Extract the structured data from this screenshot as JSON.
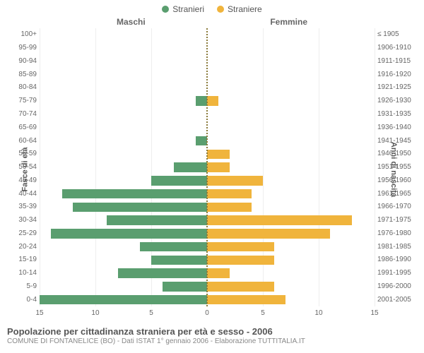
{
  "legend": {
    "male": "Stranieri",
    "female": "Straniere"
  },
  "gender_headers": {
    "male": "Maschi",
    "female": "Femmine"
  },
  "axis_titles": {
    "left": "Fasce di età",
    "right": "Anni di nascita"
  },
  "colors": {
    "male": "#5a9e6f",
    "female": "#f0b43c",
    "grid": "#eeeeee",
    "center_dash": "#8a7a3a",
    "bg": "#ffffff"
  },
  "x_axis": {
    "max": 15,
    "ticks": [
      15,
      10,
      5,
      0,
      5,
      10,
      15
    ]
  },
  "rows": [
    {
      "age": "100+",
      "birth": "≤ 1905",
      "m": 0,
      "f": 0
    },
    {
      "age": "95-99",
      "birth": "1906-1910",
      "m": 0,
      "f": 0
    },
    {
      "age": "90-94",
      "birth": "1911-1915",
      "m": 0,
      "f": 0
    },
    {
      "age": "85-89",
      "birth": "1916-1920",
      "m": 0,
      "f": 0
    },
    {
      "age": "80-84",
      "birth": "1921-1925",
      "m": 0,
      "f": 0
    },
    {
      "age": "75-79",
      "birth": "1926-1930",
      "m": 1,
      "f": 1
    },
    {
      "age": "70-74",
      "birth": "1931-1935",
      "m": 0,
      "f": 0
    },
    {
      "age": "65-69",
      "birth": "1936-1940",
      "m": 0,
      "f": 0
    },
    {
      "age": "60-64",
      "birth": "1941-1945",
      "m": 1,
      "f": 0
    },
    {
      "age": "55-59",
      "birth": "1946-1950",
      "m": 0,
      "f": 2
    },
    {
      "age": "50-54",
      "birth": "1951-1955",
      "m": 3,
      "f": 2
    },
    {
      "age": "45-49",
      "birth": "1956-1960",
      "m": 5,
      "f": 5
    },
    {
      "age": "40-44",
      "birth": "1961-1965",
      "m": 13,
      "f": 4
    },
    {
      "age": "35-39",
      "birth": "1966-1970",
      "m": 12,
      "f": 4
    },
    {
      "age": "30-34",
      "birth": "1971-1975",
      "m": 9,
      "f": 13
    },
    {
      "age": "25-29",
      "birth": "1976-1980",
      "m": 14,
      "f": 11
    },
    {
      "age": "20-24",
      "birth": "1981-1985",
      "m": 6,
      "f": 6
    },
    {
      "age": "15-19",
      "birth": "1986-1990",
      "m": 5,
      "f": 6
    },
    {
      "age": "10-14",
      "birth": "1991-1995",
      "m": 8,
      "f": 2
    },
    {
      "age": "5-9",
      "birth": "1996-2000",
      "m": 4,
      "f": 6
    },
    {
      "age": "0-4",
      "birth": "2001-2005",
      "m": 15,
      "f": 7
    }
  ],
  "caption": {
    "title": "Popolazione per cittadinanza straniera per età e sesso - 2006",
    "subtitle": "COMUNE DI FONTANELICE (BO) - Dati ISTAT 1° gennaio 2006 - Elaborazione TUTTITALIA.IT"
  }
}
